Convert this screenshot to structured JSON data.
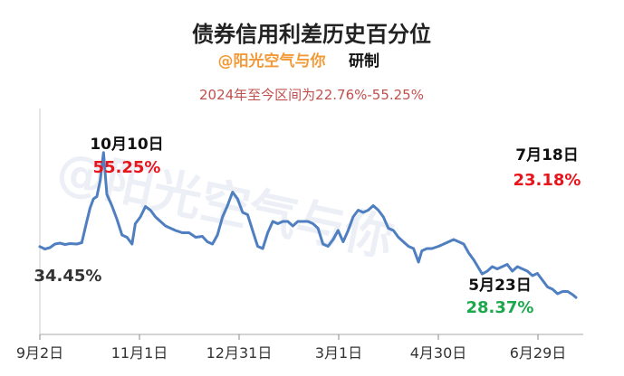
{
  "header": {
    "title": "债券信用利差历史百分位",
    "author": "@阳光空气与你",
    "made_by": "研制",
    "range_note": "2024年至今区间为22.76%-55.25%"
  },
  "watermark": "@阳光空气与你",
  "annotations": {
    "peak_date": "10月10日",
    "peak_value": "55.25%",
    "start_value": "34.45%",
    "low_date": "5月23日",
    "low_value": "28.37%",
    "last_date": "7月18日",
    "last_value": "23.18%"
  },
  "colors": {
    "line": "#4f7fc0",
    "axis": "#aaaaaa",
    "author": "#f29a38",
    "range_note": "#c0504d",
    "peak": "#e8141c",
    "low": "#1ea84d"
  },
  "chart_data": {
    "type": "line",
    "title": "债券信用利差历史百分位",
    "x_ticks": [
      "9月2日",
      "11月1日",
      "12月31日",
      "3月1日",
      "4月30日",
      "6月29日"
    ],
    "x_range": [
      "2023-09-02",
      "2024-07-18"
    ],
    "ylim": [
      15,
      65
    ],
    "grid": false,
    "series": [
      {
        "name": "",
        "points": [
          [
            "2023-09-02",
            34.45
          ],
          [
            "2023-09-05",
            33.9
          ],
          [
            "2023-09-08",
            34.2
          ],
          [
            "2023-09-11",
            35.0
          ],
          [
            "2023-09-14",
            35.2
          ],
          [
            "2023-09-17",
            34.9
          ],
          [
            "2023-09-20",
            35.1
          ],
          [
            "2023-09-24",
            35.0
          ],
          [
            "2023-09-27",
            35.3
          ],
          [
            "2023-09-30",
            40.0
          ],
          [
            "2023-10-02",
            43.0
          ],
          [
            "2023-10-04",
            45.0
          ],
          [
            "2023-10-06",
            45.5
          ],
          [
            "2023-10-08",
            49.0
          ],
          [
            "2023-10-10",
            55.25
          ],
          [
            "2023-10-12",
            46.0
          ],
          [
            "2023-10-15",
            43.5
          ],
          [
            "2023-10-18",
            40.5
          ],
          [
            "2023-10-21",
            37.0
          ],
          [
            "2023-10-24",
            36.5
          ],
          [
            "2023-10-27",
            35.0
          ],
          [
            "2023-10-29",
            39.5
          ],
          [
            "2023-11-01",
            41.0
          ],
          [
            "2023-11-04",
            43.3
          ],
          [
            "2023-11-07",
            42.5
          ],
          [
            "2023-11-10",
            41.0
          ],
          [
            "2023-11-13",
            40.0
          ],
          [
            "2023-11-16",
            39.0
          ],
          [
            "2023-11-19",
            38.5
          ],
          [
            "2023-11-22",
            38.0
          ],
          [
            "2023-11-26",
            37.5
          ],
          [
            "2023-11-30",
            37.5
          ],
          [
            "2023-12-04",
            36.5
          ],
          [
            "2023-12-08",
            36.7
          ],
          [
            "2023-12-11",
            35.5
          ],
          [
            "2023-12-14",
            35.0
          ],
          [
            "2023-12-17",
            37.0
          ],
          [
            "2023-12-20",
            41.0
          ],
          [
            "2023-12-23",
            43.5
          ],
          [
            "2023-12-26",
            46.5
          ],
          [
            "2023-12-29",
            45.0
          ],
          [
            "2024-01-01",
            42.0
          ],
          [
            "2024-01-04",
            41.5
          ],
          [
            "2024-01-07",
            38.0
          ],
          [
            "2024-01-10",
            34.5
          ],
          [
            "2024-01-13",
            34.0
          ],
          [
            "2024-01-16",
            37.5
          ],
          [
            "2024-01-19",
            40.0
          ],
          [
            "2024-01-22",
            39.5
          ],
          [
            "2024-01-25",
            40.0
          ],
          [
            "2024-01-28",
            40.0
          ],
          [
            "2024-01-31",
            39.0
          ],
          [
            "2024-02-03",
            40.0
          ],
          [
            "2024-02-06",
            40.0
          ],
          [
            "2024-02-09",
            40.0
          ],
          [
            "2024-02-12",
            39.5
          ],
          [
            "2024-02-15",
            38.5
          ],
          [
            "2024-02-18",
            35.0
          ],
          [
            "2024-02-21",
            34.5
          ],
          [
            "2024-02-24",
            36.0
          ],
          [
            "2024-02-27",
            38.0
          ],
          [
            "2024-03-01",
            35.5
          ],
          [
            "2024-03-04",
            38.0
          ],
          [
            "2024-03-07",
            41.0
          ],
          [
            "2024-03-10",
            42.5
          ],
          [
            "2024-03-13",
            42.0
          ],
          [
            "2024-03-16",
            42.5
          ],
          [
            "2024-03-19",
            43.5
          ],
          [
            "2024-03-22",
            42.5
          ],
          [
            "2024-03-25",
            41.0
          ],
          [
            "2024-03-28",
            38.5
          ],
          [
            "2024-03-31",
            38.0
          ],
          [
            "2024-04-03",
            36.5
          ],
          [
            "2024-04-06",
            35.5
          ],
          [
            "2024-04-09",
            34.5
          ],
          [
            "2024-04-12",
            34.0
          ],
          [
            "2024-04-15",
            31.0
          ],
          [
            "2024-04-17",
            33.5
          ],
          [
            "2024-04-20",
            34.0
          ],
          [
            "2024-04-23",
            34.0
          ],
          [
            "2024-04-27",
            34.5
          ],
          [
            "2024-04-30",
            35.0
          ],
          [
            "2024-05-03",
            35.5
          ],
          [
            "2024-05-06",
            36.0
          ],
          [
            "2024-05-09",
            35.5
          ],
          [
            "2024-05-12",
            35.0
          ],
          [
            "2024-05-15",
            33.0
          ],
          [
            "2024-05-18",
            31.5
          ],
          [
            "2024-05-23",
            28.37
          ],
          [
            "2024-05-26",
            29.0
          ],
          [
            "2024-05-29",
            30.0
          ],
          [
            "2024-06-01",
            29.5
          ],
          [
            "2024-06-04",
            30.0
          ],
          [
            "2024-06-07",
            30.5
          ],
          [
            "2024-06-10",
            29.0
          ],
          [
            "2024-06-13",
            30.0
          ],
          [
            "2024-06-16",
            29.5
          ],
          [
            "2024-06-19",
            29.0
          ],
          [
            "2024-06-22",
            28.0
          ],
          [
            "2024-06-25",
            28.5
          ],
          [
            "2024-06-28",
            27.0
          ],
          [
            "2024-07-01",
            25.5
          ],
          [
            "2024-07-04",
            25.0
          ],
          [
            "2024-07-07",
            24.0
          ],
          [
            "2024-07-10",
            24.5
          ],
          [
            "2024-07-13",
            24.5
          ],
          [
            "2024-07-16",
            23.8
          ],
          [
            "2024-07-18",
            23.18
          ]
        ]
      }
    ]
  }
}
